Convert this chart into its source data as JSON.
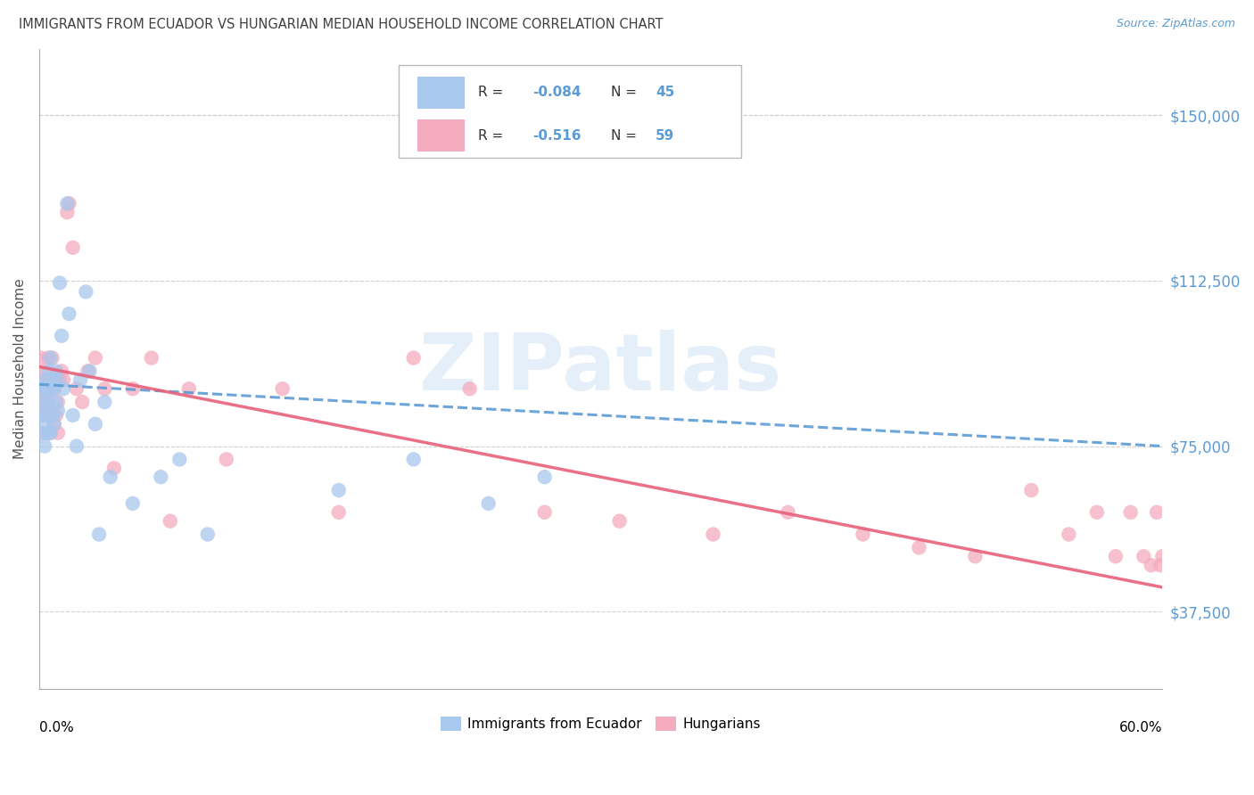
{
  "title": "IMMIGRANTS FROM ECUADOR VS HUNGARIAN MEDIAN HOUSEHOLD INCOME CORRELATION CHART",
  "source": "Source: ZipAtlas.com",
  "ylabel": "Median Household Income",
  "ytick_values": [
    37500,
    75000,
    112500,
    150000
  ],
  "ytick_labels": [
    "$37,500",
    "$75,000",
    "$112,500",
    "$150,000"
  ],
  "xlim": [
    0.0,
    0.6
  ],
  "ylim": [
    20000,
    165000
  ],
  "color_ecuador": "#A8C8EE",
  "color_hungarian": "#F5ABBE",
  "color_ecu_line": "#5B9BD5",
  "color_hun_line": "#E8607A",
  "color_ytick": "#5B9BD5",
  "color_title": "#404040",
  "color_source": "#5B9BD5",
  "watermark": "ZIPatlas",
  "ecuador_x": [
    0.001,
    0.001,
    0.002,
    0.002,
    0.003,
    0.003,
    0.003,
    0.004,
    0.004,
    0.005,
    0.005,
    0.005,
    0.006,
    0.006,
    0.006,
    0.007,
    0.007,
    0.008,
    0.008,
    0.009,
    0.009,
    0.01,
    0.01,
    0.011,
    0.012,
    0.013,
    0.015,
    0.016,
    0.018,
    0.02,
    0.022,
    0.025,
    0.027,
    0.03,
    0.032,
    0.035,
    0.038,
    0.05,
    0.065,
    0.075,
    0.09,
    0.16,
    0.2,
    0.24,
    0.27
  ],
  "ecuador_y": [
    88000,
    82000,
    85000,
    78000,
    90000,
    82000,
    75000,
    88000,
    80000,
    92000,
    85000,
    78000,
    95000,
    88000,
    78000,
    90000,
    82000,
    88000,
    80000,
    92000,
    85000,
    90000,
    83000,
    112000,
    100000,
    88000,
    130000,
    105000,
    82000,
    75000,
    90000,
    110000,
    92000,
    80000,
    55000,
    85000,
    68000,
    62000,
    68000,
    72000,
    55000,
    65000,
    72000,
    62000,
    68000
  ],
  "hungarian_x": [
    0.001,
    0.001,
    0.002,
    0.002,
    0.003,
    0.003,
    0.004,
    0.004,
    0.005,
    0.005,
    0.005,
    0.006,
    0.006,
    0.007,
    0.007,
    0.008,
    0.008,
    0.009,
    0.009,
    0.01,
    0.01,
    0.011,
    0.012,
    0.013,
    0.015,
    0.016,
    0.018,
    0.02,
    0.023,
    0.026,
    0.03,
    0.035,
    0.04,
    0.05,
    0.06,
    0.07,
    0.08,
    0.1,
    0.13,
    0.16,
    0.2,
    0.23,
    0.27,
    0.31,
    0.36,
    0.4,
    0.44,
    0.47,
    0.5,
    0.53,
    0.55,
    0.565,
    0.575,
    0.583,
    0.59,
    0.594,
    0.597,
    0.599,
    0.6
  ],
  "hungarian_y": [
    85000,
    95000,
    88000,
    78000,
    92000,
    82000,
    90000,
    85000,
    90000,
    82000,
    95000,
    88000,
    78000,
    95000,
    88000,
    88000,
    80000,
    90000,
    82000,
    85000,
    78000,
    90000,
    92000,
    90000,
    128000,
    130000,
    120000,
    88000,
    85000,
    92000,
    95000,
    88000,
    70000,
    88000,
    95000,
    58000,
    88000,
    72000,
    88000,
    60000,
    95000,
    88000,
    60000,
    58000,
    55000,
    60000,
    55000,
    52000,
    50000,
    65000,
    55000,
    60000,
    50000,
    60000,
    50000,
    48000,
    60000,
    48000,
    50000
  ]
}
